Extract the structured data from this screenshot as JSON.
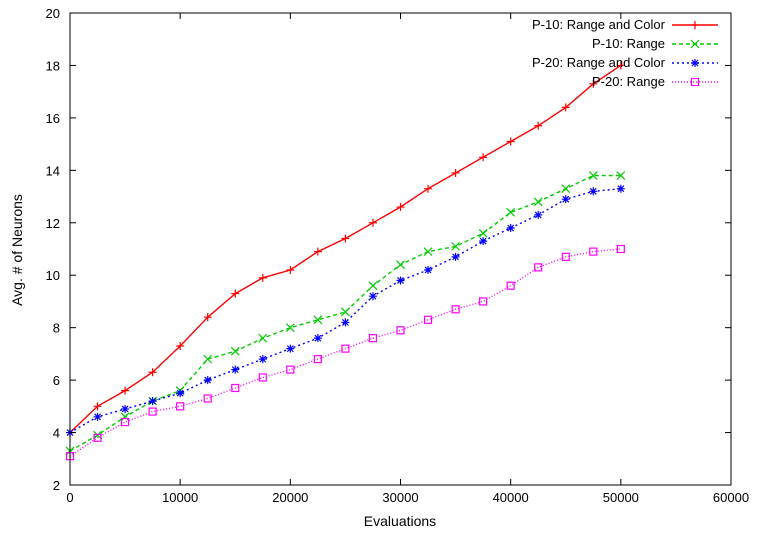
{
  "chart_data": {
    "type": "line",
    "title": "",
    "xlabel": "Evaluations",
    "ylabel": "Avg. # of Neurons",
    "xlim": [
      0,
      60000
    ],
    "ylim": [
      2,
      20
    ],
    "x_ticks": [
      "0",
      "10000",
      "20000",
      "30000",
      "40000",
      "50000",
      "60000"
    ],
    "y_ticks": [
      "2",
      "4",
      "6",
      "8",
      "10",
      "12",
      "14",
      "16",
      "18",
      "20"
    ],
    "grid": false,
    "legend_position": "top-right",
    "series": [
      {
        "name": "P-10: Range and Color",
        "color": "#ff0000",
        "marker": "plus",
        "dash": "",
        "x": [
          0,
          2500,
          5000,
          7500,
          10000,
          12500,
          15000,
          17500,
          20000,
          22500,
          25000,
          27500,
          30000,
          32500,
          35000,
          37500,
          40000,
          42500,
          45000,
          47500,
          50000
        ],
        "y": [
          4.0,
          5.0,
          5.6,
          6.3,
          7.3,
          8.4,
          9.3,
          9.9,
          10.2,
          10.9,
          11.4,
          12.0,
          12.6,
          13.3,
          13.9,
          14.5,
          15.1,
          15.7,
          16.4,
          17.3,
          18.0
        ]
      },
      {
        "name": "P-10: Range",
        "color": "#00cc00",
        "marker": "x",
        "dash": "4 3",
        "x": [
          0,
          2500,
          5000,
          7500,
          10000,
          12500,
          15000,
          17500,
          20000,
          22500,
          25000,
          27500,
          30000,
          32500,
          35000,
          37500,
          40000,
          42500,
          45000,
          47500,
          50000
        ],
        "y": [
          3.3,
          3.9,
          4.6,
          5.2,
          5.6,
          6.8,
          7.1,
          7.6,
          8.0,
          8.3,
          8.6,
          9.6,
          10.4,
          10.9,
          11.1,
          11.6,
          12.4,
          12.8,
          13.3,
          13.8,
          13.8
        ]
      },
      {
        "name": "P-20: Range and Color",
        "color": "#0000ff",
        "marker": "star",
        "dash": "2 3",
        "x": [
          0,
          2500,
          5000,
          7500,
          10000,
          12500,
          15000,
          17500,
          20000,
          22500,
          25000,
          27500,
          30000,
          32500,
          35000,
          37500,
          40000,
          42500,
          45000,
          47500,
          50000
        ],
        "y": [
          4.0,
          4.6,
          4.9,
          5.2,
          5.5,
          6.0,
          6.4,
          6.8,
          7.2,
          7.6,
          8.2,
          9.2,
          9.8,
          10.2,
          10.7,
          11.3,
          11.8,
          12.3,
          12.9,
          13.2,
          13.3
        ]
      },
      {
        "name": "P-20: Range",
        "color": "#ff00ff",
        "marker": "square",
        "dash": "1 2",
        "x": [
          0,
          2500,
          5000,
          7500,
          10000,
          12500,
          15000,
          17500,
          20000,
          22500,
          25000,
          27500,
          30000,
          32500,
          35000,
          37500,
          40000,
          42500,
          45000,
          47500,
          50000
        ],
        "y": [
          3.1,
          3.8,
          4.4,
          4.8,
          5.0,
          5.3,
          5.7,
          6.1,
          6.4,
          6.8,
          7.2,
          7.6,
          7.9,
          8.3,
          8.7,
          9.0,
          9.6,
          10.3,
          10.7,
          10.9,
          11.0
        ]
      }
    ]
  }
}
